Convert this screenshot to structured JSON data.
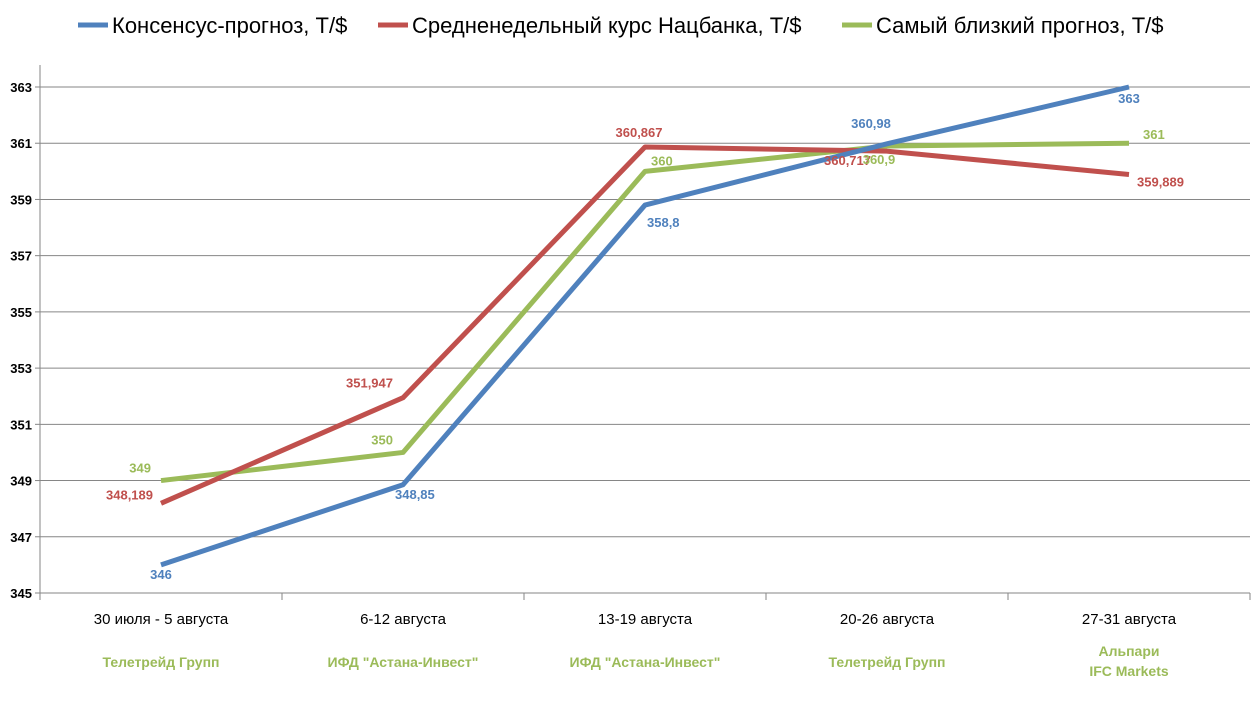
{
  "chart_data": {
    "type": "line",
    "categories": [
      "30 июля - 5 августа",
      "6-12 августа",
      "13-19 августа",
      "20-26 августа",
      "27-31 августа"
    ],
    "forecasters": [
      [
        "Телетрейд Групп"
      ],
      [
        "ИФД \"Астана-Инвест\""
      ],
      [
        "ИФД \"Астана-Инвест\""
      ],
      [
        "Телетрейд Групп"
      ],
      [
        "Альпари",
        "IFC Markets"
      ]
    ],
    "series": [
      {
        "name": "Консенсус-прогноз, Т/$",
        "color": "#4F81BD",
        "values": [
          346,
          348.85,
          358.8,
          360.98,
          363
        ],
        "labels": [
          "346",
          "348,85",
          "358,8",
          "360,98",
          "363"
        ]
      },
      {
        "name": "Средненедельный курс Нацбанка, Т/$",
        "color": "#C0504D",
        "values": [
          348.189,
          351.947,
          360.867,
          360.717,
          359.889
        ],
        "labels": [
          "348,189",
          "351,947",
          "360,867",
          "360,717",
          "359,889"
        ]
      },
      {
        "name": "Самый близкий прогноз, Т/$",
        "color": "#9BBB59",
        "values": [
          349,
          350,
          360,
          360.9,
          361
        ],
        "labels": [
          "349",
          "350",
          "360",
          "360,9",
          "361"
        ]
      }
    ],
    "yticks": [
      345,
      347,
      349,
      351,
      353,
      355,
      357,
      359,
      361,
      363
    ],
    "ylim": [
      345,
      365
    ],
    "grid": true,
    "legend_position": "top",
    "forecaster_color": "#9BBB59"
  }
}
